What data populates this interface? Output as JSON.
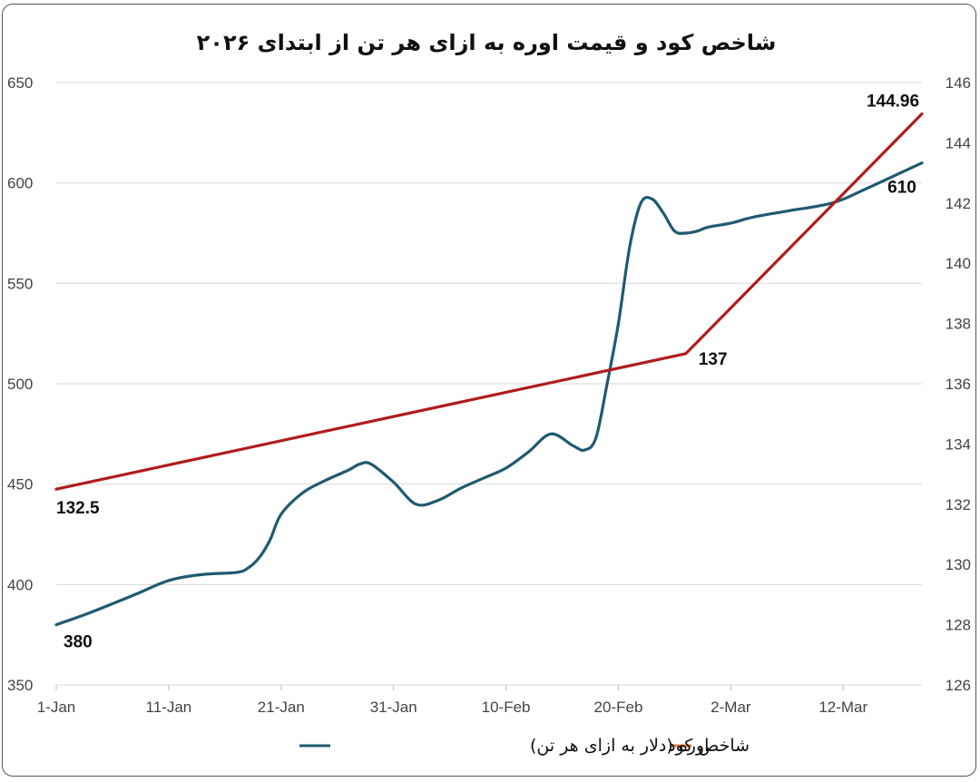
{
  "chart_data": {
    "type": "line",
    "title": "شاخص کود و قیمت اوره به ازای هر تن از ابتدای ۲۰۲۶",
    "x_ticks": [
      "1-Jan",
      "11-Jan",
      "21-Jan",
      "31-Jan",
      "10-Feb",
      "20-Feb",
      "2-Mar",
      "12-Mar"
    ],
    "x_tick_offsets": [
      0,
      10,
      20,
      30,
      40,
      50,
      60,
      70
    ],
    "x_range": [
      0,
      77
    ],
    "y_left": {
      "range": [
        350,
        650
      ],
      "ticks": [
        350,
        400,
        450,
        500,
        550,
        600,
        650
      ]
    },
    "y_right": {
      "range": [
        126,
        146
      ],
      "ticks": [
        126,
        128,
        130,
        132,
        134,
        136,
        138,
        140,
        142,
        144,
        146
      ]
    },
    "grid": true,
    "legend_position": "bottom",
    "series": [
      {
        "name": "اوره (دلار به ازای هر تن)",
        "axis": "left",
        "color": "#1f5a70",
        "smooth": true,
        "x": [
          0,
          3,
          7,
          10,
          13,
          16,
          17,
          18,
          19,
          20,
          22,
          24,
          26,
          27,
          28,
          30,
          32,
          34,
          36,
          38,
          40,
          42,
          44,
          46,
          47,
          48,
          49,
          50,
          51,
          52,
          53,
          54,
          55,
          56,
          57,
          58,
          60,
          62,
          65,
          69,
          72,
          77
        ],
        "values": [
          380,
          386,
          395,
          402,
          405,
          406,
          408,
          413,
          422,
          435,
          446,
          452,
          457,
          460,
          460,
          451,
          440,
          442,
          448,
          453,
          458,
          466,
          475,
          469,
          467,
          473,
          500,
          530,
          568,
          590,
          592,
          585,
          576,
          575,
          576,
          578,
          580,
          583,
          586,
          590,
          597,
          610
        ],
        "data_labels": [
          {
            "index": 0,
            "text": "380"
          },
          {
            "index": 41,
            "text": "610"
          }
        ]
      },
      {
        "name": "شاخص کود",
        "axis": "right",
        "color": "#b01c1c",
        "legend_color": "#e07b39",
        "smooth": false,
        "x": [
          0,
          56,
          77
        ],
        "values": [
          132.5,
          137,
          144.96
        ],
        "data_labels": [
          {
            "index": 0,
            "text": "132.5"
          },
          {
            "index": 1,
            "text": "137"
          },
          {
            "index": 2,
            "text": "144.96"
          }
        ]
      }
    ]
  }
}
